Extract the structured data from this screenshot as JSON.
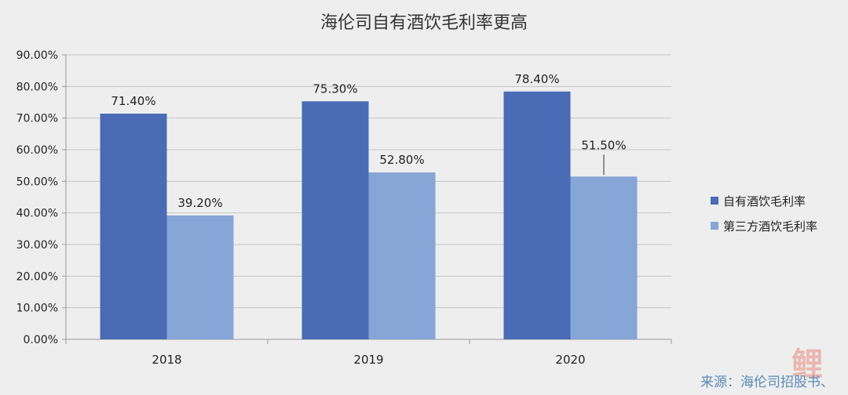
{
  "chart_data": {
    "type": "bar",
    "title": "海伦司自有酒饮毛利率更高",
    "categories": [
      "2018",
      "2019",
      "2020"
    ],
    "series": [
      {
        "name": "自有酒饮毛利率",
        "values": [
          71.4,
          75.3,
          78.4
        ],
        "labels": [
          "71.40%",
          "75.30%",
          "78.40%"
        ],
        "color": "#4a6bb5"
      },
      {
        "name": "第三方酒饮毛利率",
        "values": [
          39.2,
          52.8,
          51.5
        ],
        "labels": [
          "39.20%",
          "52.80%",
          "51.50%"
        ],
        "color": "#86a6d8"
      }
    ],
    "yticks": [
      "0.00%",
      "10.00%",
      "20.00%",
      "30.00%",
      "40.00%",
      "50.00%",
      "60.00%",
      "70.00%",
      "80.00%",
      "90.00%"
    ],
    "ylim": [
      0,
      90
    ],
    "grid": true,
    "legend": "right"
  },
  "source": {
    "text": "来源：海伦司招股书、"
  },
  "watermark": {
    "text": "鲤"
  }
}
